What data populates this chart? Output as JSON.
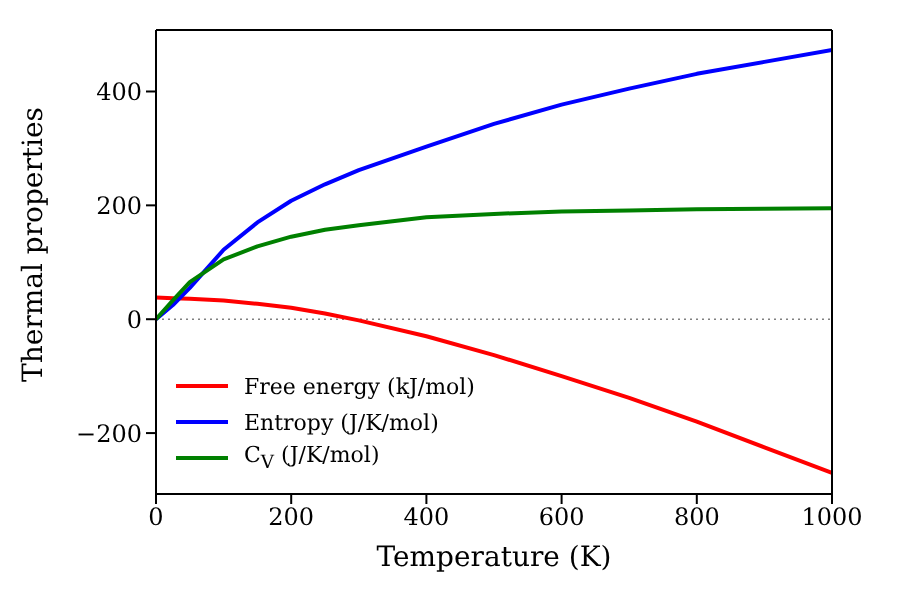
{
  "chart_data": {
    "type": "line",
    "xlabel": "Temperature (K)",
    "ylabel": "Thermal properties",
    "x": [
      0,
      25,
      50,
      100,
      150,
      200,
      250,
      300,
      400,
      500,
      600,
      700,
      800,
      900,
      1000
    ],
    "series": [
      {
        "name": "Free energy (kJ/mol)",
        "color": "#ff0000",
        "values": [
          38,
          37,
          36,
          33,
          27,
          20,
          10,
          -2,
          -30,
          -63,
          -100,
          -138,
          -180,
          -225,
          -270
        ]
      },
      {
        "name": "Entropy (J/K/mol)",
        "color": "#0000ff",
        "values": [
          0,
          25,
          55,
          122,
          170,
          208,
          237,
          262,
          303,
          343,
          377,
          405,
          431,
          452,
          473
        ]
      },
      {
        "name": "C$_{V}$ (J/K/mol)",
        "color": "#008000",
        "values": [
          0,
          33,
          65,
          105,
          128,
          145,
          157,
          165,
          179,
          185,
          189,
          191,
          193,
          194,
          195
        ]
      }
    ],
    "xlim": [
      0,
      1000
    ],
    "xticks": [
      0,
      200,
      400,
      600,
      800,
      1000
    ],
    "ylim": [
      -307,
      508
    ],
    "yticks": [
      -200,
      0,
      200,
      400
    ],
    "ref_lines": [
      {
        "axis": "y",
        "value": 0,
        "color": "#808080",
        "line_style": "dotted"
      }
    ],
    "grid": false,
    "legend": "bottom left",
    "marker": "none",
    "line_style": "solid"
  }
}
